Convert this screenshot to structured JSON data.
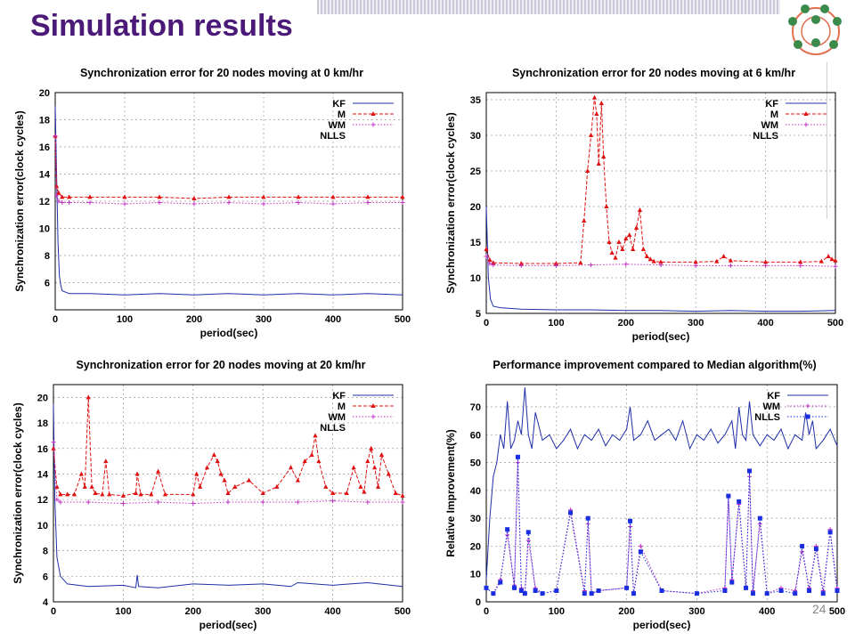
{
  "slide": {
    "title": "Simulation results",
    "page_number": "24"
  },
  "colors": {
    "title": "#4b1a78",
    "kf": "#1f2fa8",
    "m": "#e01010",
    "wm": "#c030c0",
    "nlls": "#1a2ee0",
    "grid": "#888888"
  },
  "chart_data": [
    {
      "type": "line",
      "title": "Synchronization error for 20 nodes moving at 0 km/hr",
      "xlabel": "period(sec)",
      "ylabel": "Synchronization error(clock cycles)",
      "xlim": [
        0,
        500
      ],
      "ylim": [
        4,
        20
      ],
      "xticks": [
        0,
        100,
        200,
        300,
        400,
        500
      ],
      "yticks": [
        6,
        8,
        10,
        12,
        14,
        16,
        18,
        20
      ],
      "legend": [
        "KF",
        "M",
        "WM",
        "NLLS"
      ],
      "legend_position": "top-right",
      "grid": true,
      "series": [
        {
          "name": "KF",
          "style": "solid",
          "color": "#1f2fa8",
          "x": [
            0,
            2,
            4,
            6,
            8,
            10,
            15,
            20,
            50,
            100,
            150,
            200,
            250,
            300,
            350,
            400,
            450,
            500
          ],
          "y": [
            19,
            14,
            9,
            6.5,
            5.8,
            5.4,
            5.3,
            5.2,
            5.2,
            5.1,
            5.2,
            5.1,
            5.2,
            5.1,
            5.2,
            5.1,
            5.2,
            5.1
          ]
        },
        {
          "name": "M",
          "style": "dashed-triangle",
          "color": "#e01010",
          "x": [
            0,
            2,
            5,
            10,
            20,
            50,
            100,
            150,
            200,
            250,
            300,
            350,
            400,
            450,
            500
          ],
          "y": [
            16.8,
            13.1,
            12.6,
            12.3,
            12.3,
            12.3,
            12.3,
            12.3,
            12.2,
            12.3,
            12.3,
            12.3,
            12.3,
            12.3,
            12.3
          ]
        },
        {
          "name": "WM",
          "style": "dotted-plus",
          "color": "#c030c0",
          "x": [
            0,
            2,
            5,
            10,
            20,
            50,
            100,
            150,
            200,
            250,
            300,
            350,
            400,
            450,
            500
          ],
          "y": [
            16.8,
            12.4,
            12.0,
            11.9,
            11.9,
            11.9,
            11.8,
            11.9,
            11.8,
            11.9,
            11.8,
            11.9,
            11.8,
            11.9,
            11.9
          ]
        }
      ]
    },
    {
      "type": "line",
      "title": "Synchronization error for 20 nodes moving at 6 km/hr",
      "xlabel": "period(sec)",
      "ylabel": "Synchronization error(clock cycles)",
      "xlim": [
        0,
        500
      ],
      "ylim": [
        5,
        36
      ],
      "xticks": [
        0,
        100,
        200,
        300,
        400,
        500
      ],
      "yticks": [
        5,
        10,
        15,
        20,
        25,
        30,
        35
      ],
      "legend": [
        "KF",
        "M",
        "WM",
        "NLLS"
      ],
      "legend_position": "top-right",
      "grid": true,
      "series": [
        {
          "name": "KF",
          "style": "solid",
          "color": "#1f2fa8",
          "x": [
            0,
            3,
            6,
            10,
            20,
            50,
            100,
            150,
            200,
            250,
            300,
            350,
            400,
            450,
            500
          ],
          "y": [
            20,
            10,
            7,
            6,
            5.8,
            5.6,
            5.5,
            5.5,
            5.4,
            5.4,
            5.3,
            5.4,
            5.3,
            5.3,
            5.4
          ]
        },
        {
          "name": "M",
          "style": "dashed-triangle",
          "color": "#e01010",
          "x": [
            0,
            5,
            10,
            50,
            100,
            135,
            140,
            145,
            150,
            155,
            158,
            161,
            165,
            168,
            172,
            176,
            180,
            185,
            190,
            195,
            200,
            205,
            210,
            215,
            220,
            225,
            230,
            235,
            240,
            250,
            300,
            330,
            340,
            350,
            400,
            450,
            480,
            490,
            495,
            500
          ],
          "y": [
            14,
            12.5,
            12.1,
            12,
            12,
            12.1,
            18,
            25,
            30,
            35.3,
            33,
            26,
            34.5,
            27,
            20,
            15,
            13.5,
            12.8,
            15,
            14,
            15.5,
            16,
            14,
            17,
            19.5,
            14,
            13,
            12.6,
            12.3,
            12.2,
            12.2,
            12.3,
            13,
            12.4,
            12.2,
            12.2,
            12.3,
            13,
            12.6,
            12.4
          ]
        },
        {
          "name": "WM",
          "style": "dotted-plus",
          "color": "#c030c0",
          "x": [
            0,
            5,
            10,
            50,
            100,
            150,
            200,
            250,
            300,
            350,
            400,
            450,
            500
          ],
          "y": [
            13,
            12,
            11.8,
            11.7,
            11.7,
            11.8,
            11.9,
            11.8,
            11.7,
            11.7,
            11.7,
            11.7,
            11.6
          ]
        }
      ]
    },
    {
      "type": "line",
      "title": "Synchronization error for 20 nodes moving at 20 km/hr",
      "xlabel": "period(sec)",
      "ylabel": "Synchronization error(clock cycles)",
      "xlim": [
        0,
        500
      ],
      "ylim": [
        4,
        21
      ],
      "xticks": [
        0,
        100,
        200,
        300,
        400,
        500
      ],
      "yticks": [
        4,
        6,
        8,
        10,
        12,
        14,
        16,
        18,
        20
      ],
      "legend": [
        "KF",
        "M",
        "WM",
        "NLLS"
      ],
      "legend_position": "top-right",
      "grid": true,
      "series": [
        {
          "name": "KF",
          "style": "solid",
          "color": "#1f2fa8",
          "x": [
            0,
            2,
            5,
            10,
            20,
            50,
            100,
            118,
            120,
            122,
            150,
            200,
            250,
            300,
            340,
            350,
            400,
            450,
            500
          ],
          "y": [
            19.5,
            12,
            7.5,
            6,
            5.4,
            5.2,
            5.3,
            5.1,
            6.1,
            5.2,
            5.1,
            5.4,
            5.3,
            5.4,
            5.2,
            5.5,
            5.3,
            5.5,
            5.2
          ]
        },
        {
          "name": "M",
          "style": "dashed-triangle",
          "color": "#e01010",
          "x": [
            0,
            5,
            10,
            20,
            30,
            40,
            45,
            50,
            55,
            60,
            70,
            75,
            80,
            100,
            118,
            120,
            125,
            140,
            150,
            160,
            200,
            205,
            210,
            220,
            230,
            235,
            240,
            245,
            250,
            260,
            280,
            300,
            320,
            340,
            350,
            360,
            370,
            375,
            380,
            390,
            400,
            420,
            430,
            440,
            445,
            450,
            455,
            460,
            465,
            470,
            480,
            490,
            500
          ],
          "y": [
            16,
            13,
            12.4,
            12.4,
            12.4,
            14,
            13,
            20,
            13,
            12.5,
            12.4,
            15,
            12.4,
            12.3,
            12.5,
            14,
            12.4,
            12.4,
            14.2,
            12.4,
            12.4,
            14,
            13,
            14.5,
            15.5,
            15,
            14,
            13.5,
            12.5,
            13,
            13.5,
            12.5,
            13,
            14.5,
            13.5,
            15,
            15.5,
            17,
            15,
            13,
            12.5,
            12.5,
            14.5,
            13,
            12.6,
            15,
            16,
            14.5,
            13,
            15.5,
            14,
            12.5,
            12.3
          ]
        },
        {
          "name": "WM",
          "style": "dotted-plus",
          "color": "#c030c0",
          "x": [
            0,
            5,
            10,
            50,
            100,
            150,
            200,
            250,
            300,
            350,
            400,
            450,
            500
          ],
          "y": [
            16.5,
            12,
            11.8,
            11.8,
            11.7,
            11.8,
            11.7,
            11.8,
            11.8,
            11.8,
            11.9,
            11.8,
            11.8
          ]
        }
      ]
    },
    {
      "type": "line",
      "title": "Performance improvement compared to Median algorithm(%)",
      "xlabel": "period(sec)",
      "ylabel": "Relative Improvement(%)",
      "xlim": [
        0,
        500
      ],
      "ylim": [
        0,
        78
      ],
      "xticks": [
        0,
        100,
        200,
        300,
        400,
        500
      ],
      "yticks": [
        0,
        10,
        20,
        30,
        40,
        50,
        60,
        70
      ],
      "legend": [
        "KF",
        "WM",
        "NLLS"
      ],
      "legend_position": "top-right",
      "grid": true,
      "series": [
        {
          "name": "KF",
          "style": "solid",
          "color": "#1f2fa8",
          "x": [
            0,
            5,
            10,
            15,
            20,
            25,
            30,
            35,
            40,
            45,
            50,
            55,
            60,
            65,
            70,
            80,
            90,
            100,
            110,
            120,
            130,
            140,
            150,
            160,
            170,
            180,
            190,
            200,
            205,
            210,
            220,
            230,
            240,
            250,
            260,
            270,
            280,
            290,
            300,
            310,
            320,
            330,
            340,
            350,
            355,
            360,
            365,
            370,
            375,
            380,
            390,
            400,
            410,
            420,
            430,
            440,
            450,
            455,
            460,
            465,
            470,
            480,
            490,
            500
          ],
          "y": [
            8,
            30,
            45,
            50,
            60,
            55,
            72,
            55,
            58,
            65,
            60,
            77,
            60,
            55,
            68,
            58,
            60,
            55,
            58,
            62,
            55,
            60,
            58,
            62,
            56,
            60,
            58,
            62,
            70,
            58,
            60,
            65,
            58,
            60,
            62,
            58,
            65,
            55,
            60,
            58,
            62,
            57,
            60,
            65,
            55,
            70,
            60,
            58,
            72,
            60,
            56,
            60,
            58,
            62,
            55,
            60,
            58,
            68,
            60,
            65,
            55,
            58,
            62,
            56
          ]
        },
        {
          "name": "WM",
          "style": "dotted-plus",
          "color": "#c030c0",
          "x": [
            0,
            10,
            20,
            30,
            40,
            45,
            50,
            55,
            60,
            70,
            80,
            100,
            120,
            140,
            145,
            150,
            160,
            200,
            205,
            210,
            220,
            250,
            300,
            340,
            345,
            350,
            360,
            370,
            375,
            380,
            390,
            400,
            420,
            440,
            450,
            460,
            470,
            480,
            490,
            500
          ],
          "y": [
            5,
            3,
            8,
            24,
            6,
            50,
            5,
            3,
            22,
            5,
            3,
            4,
            33,
            4,
            28,
            3,
            4,
            5,
            27,
            3,
            20,
            4,
            3,
            5,
            38,
            8,
            35,
            5,
            45,
            4,
            28,
            3,
            5,
            4,
            18,
            5,
            20,
            4,
            26,
            5
          ]
        },
        {
          "name": "NLLS",
          "style": "dotted-square",
          "color": "#1a2ee0",
          "x": [
            0,
            10,
            20,
            30,
            40,
            45,
            50,
            55,
            60,
            70,
            80,
            100,
            120,
            140,
            145,
            150,
            160,
            200,
            205,
            210,
            220,
            250,
            300,
            340,
            345,
            350,
            360,
            370,
            375,
            380,
            390,
            400,
            420,
            440,
            450,
            460,
            470,
            480,
            490,
            500
          ],
          "y": [
            5,
            3,
            7,
            26,
            5,
            52,
            4,
            3,
            25,
            4,
            3,
            4,
            32,
            3,
            30,
            3,
            4,
            5,
            29,
            3,
            18,
            4,
            3,
            4,
            38,
            7,
            36,
            5,
            47,
            3,
            30,
            3,
            4,
            3,
            20,
            4,
            19,
            3,
            25,
            4
          ]
        }
      ]
    }
  ]
}
